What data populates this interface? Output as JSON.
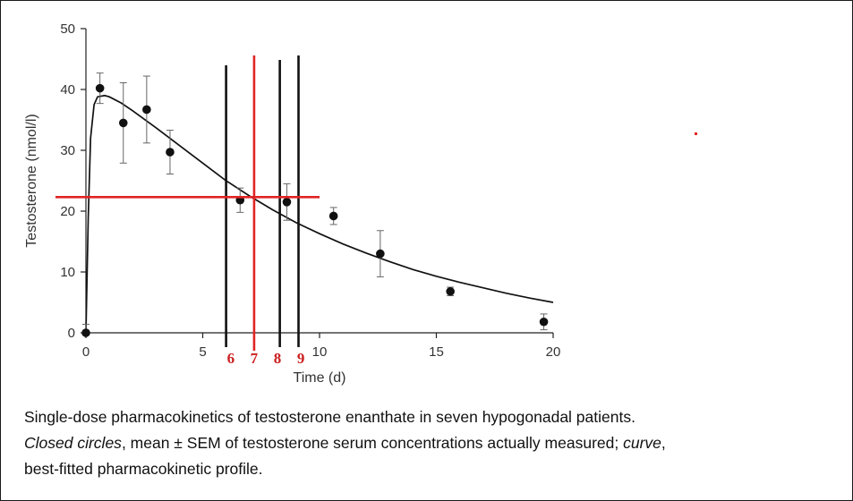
{
  "chart_data": {
    "type": "scatter",
    "xlabel": "Time (d)",
    "ylabel": "Testosterone (nmol/l)",
    "xlim": [
      0,
      20
    ],
    "ylim": [
      0,
      50
    ],
    "x_ticks": [
      0,
      5,
      10,
      15,
      20
    ],
    "y_ticks": [
      0,
      10,
      20,
      30,
      40,
      50
    ],
    "grid": false,
    "series": [
      {
        "type": "scatter",
        "points": [
          {
            "x": 0,
            "y": 0,
            "err": 1.4
          },
          {
            "x": 0.6,
            "y": 40.2,
            "err": 2.5
          },
          {
            "x": 1.6,
            "y": 34.5,
            "err": 6.6
          },
          {
            "x": 2.6,
            "y": 36.7,
            "err": 5.5
          },
          {
            "x": 3.6,
            "y": 29.7,
            "err": 3.6
          },
          {
            "x": 6.6,
            "y": 21.8,
            "err": 2.0
          },
          {
            "x": 8.6,
            "y": 21.5,
            "err": 3.0
          },
          {
            "x": 10.6,
            "y": 19.2,
            "err": 1.4
          },
          {
            "x": 12.6,
            "y": 13.0,
            "err": 3.8
          },
          {
            "x": 15.6,
            "y": 6.8,
            "err": 0.7
          },
          {
            "x": 19.6,
            "y": 1.8,
            "err": 1.3
          }
        ]
      },
      {
        "type": "line",
        "x": [
          0,
          0.1,
          0.2,
          0.35,
          0.5,
          0.8,
          1,
          1.5,
          2,
          3,
          4,
          5,
          6,
          7,
          8,
          9,
          10,
          11,
          12,
          13,
          14,
          15,
          16,
          17,
          18,
          19,
          20
        ],
        "y": [
          0,
          19,
          32,
          37.5,
          38.8,
          39.0,
          38.8,
          37.8,
          36.5,
          33.7,
          30.8,
          27.9,
          25.0,
          22.5,
          20.2,
          18.1,
          16.3,
          14.6,
          13.1,
          11.7,
          10.4,
          9.3,
          8.3,
          7.4,
          6.5,
          5.7,
          5.0
        ]
      }
    ],
    "annotations": {
      "black_vlines": [
        6,
        8.3,
        9.1
      ],
      "red_vline": 7.2,
      "red_hline": 22.3,
      "markers": [
        {
          "x": 6.2,
          "label": "6"
        },
        {
          "x": 7.2,
          "label": "7"
        },
        {
          "x": 8.2,
          "label": "8"
        },
        {
          "x": 9.2,
          "label": "9"
        }
      ],
      "colors": {
        "black": "#111111",
        "red": "#e02424",
        "label": "#cc1f1f"
      }
    }
  },
  "caption": {
    "line1": "Single-dose pharmacokinetics of testosterone enanthate in seven hypogonadal patients.",
    "closed_circles": "Closed circles",
    "line2_mid": ", mean ± SEM of testosterone serum concentrations actually measured; ",
    "curve": "curve",
    "line2_end": ",",
    "line3": "best-fitted pharmacokinetic profile."
  }
}
